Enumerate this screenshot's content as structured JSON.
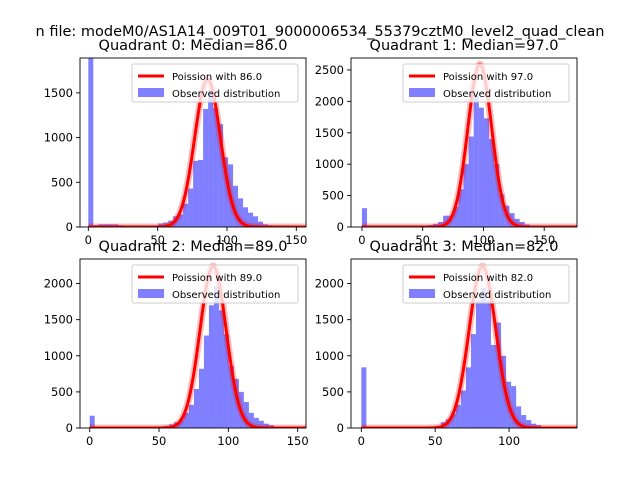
{
  "suptitle": "n file: modeM0/AS1A14_009T01_9000006534_55379cztM0_level2_quad_clean",
  "colors": {
    "observed": "#0000ff",
    "observed_alpha": 0.5,
    "poisson": "#ff0000"
  },
  "chart_data": [
    {
      "type": "bar+line",
      "title": "Quadrant 0: Median=86.0",
      "median": 86,
      "x_ticks": [
        0,
        50,
        100,
        150
      ],
      "y_ticks": [
        0,
        500,
        1000,
        1500
      ],
      "xlim": [
        -6,
        157
      ],
      "ylim": [
        0,
        1890
      ],
      "legend": [
        "Poission with 86.0",
        "Observed distribution"
      ],
      "legend_loc": "upper right",
      "poisson_peak": 1650,
      "hist_bin_width": 3.6,
      "hist": [
        [
          0,
          1890
        ],
        [
          3.6,
          20
        ],
        [
          7.2,
          30
        ],
        [
          10.8,
          30
        ],
        [
          14.4,
          30
        ],
        [
          18,
          30
        ],
        [
          21.6,
          20
        ],
        [
          25.2,
          15
        ],
        [
          28.8,
          10
        ],
        [
          32.4,
          10
        ],
        [
          36,
          10
        ],
        [
          39.6,
          10
        ],
        [
          43.2,
          10
        ],
        [
          46.8,
          15
        ],
        [
          50.4,
          40
        ],
        [
          54,
          50
        ],
        [
          57.6,
          70
        ],
        [
          61.2,
          120
        ],
        [
          64.8,
          140
        ],
        [
          68.4,
          260
        ],
        [
          72,
          430
        ],
        [
          75.6,
          740
        ],
        [
          79.2,
          750
        ],
        [
          82.8,
          1320
        ],
        [
          86.4,
          1530
        ],
        [
          90,
          1330
        ],
        [
          93.6,
          1150
        ],
        [
          97.2,
          780
        ],
        [
          100.8,
          700
        ],
        [
          104.4,
          460
        ],
        [
          108,
          320
        ],
        [
          111.6,
          220
        ],
        [
          115.2,
          160
        ],
        [
          118.8,
          120
        ],
        [
          122.4,
          60
        ],
        [
          126,
          30
        ],
        [
          129.6,
          20
        ],
        [
          133.2,
          10
        ]
      ]
    },
    {
      "type": "bar+line",
      "title": "Quadrant 1: Median=97.0",
      "median": 97,
      "x_ticks": [
        0,
        50,
        100,
        150
      ],
      "y_ticks": [
        0,
        500,
        1000,
        1500,
        2000,
        2500
      ],
      "xlim": [
        -9,
        177
      ],
      "ylim": [
        0,
        2690
      ],
      "legend": [
        "Poission with 97.0",
        "Observed distribution"
      ],
      "legend_loc": "upper right",
      "poisson_peak": 2590,
      "hist_bin_width": 4.2,
      "hist": [
        [
          0,
          300
        ],
        [
          4.2,
          0
        ],
        [
          50,
          20
        ],
        [
          54.2,
          30
        ],
        [
          58.4,
          50
        ],
        [
          62.6,
          80
        ],
        [
          66.8,
          180
        ],
        [
          71,
          180
        ],
        [
          75.2,
          320
        ],
        [
          79.4,
          600
        ],
        [
          83.6,
          1000
        ],
        [
          87.8,
          1440
        ],
        [
          92,
          2100
        ],
        [
          96.2,
          1900
        ],
        [
          100.4,
          1730
        ],
        [
          104.6,
          1400
        ],
        [
          108.8,
          1000
        ],
        [
          113,
          520
        ],
        [
          117.2,
          340
        ],
        [
          121.4,
          220
        ],
        [
          125.6,
          130
        ],
        [
          129.8,
          80
        ],
        [
          134,
          40
        ],
        [
          138.2,
          20
        ],
        [
          142.4,
          10
        ],
        [
          146.6,
          10
        ],
        [
          150.8,
          5
        ],
        [
          155,
          5
        ],
        [
          159.2,
          5
        ],
        [
          163.4,
          5
        ]
      ]
    },
    {
      "type": "bar+line",
      "title": "Quadrant 2: Median=89.0",
      "median": 89,
      "x_ticks": [
        0,
        50,
        100,
        150
      ],
      "y_ticks": [
        0,
        500,
        1000,
        1500,
        2000
      ],
      "xlim": [
        -7,
        156
      ],
      "ylim": [
        0,
        2340
      ],
      "legend": [
        "Poission with 89.0",
        "Observed distribution"
      ],
      "legend_loc": "upper right",
      "poisson_peak": 2240,
      "hist_bin_width": 3.6,
      "hist": [
        [
          0,
          170
        ],
        [
          3.6,
          0
        ],
        [
          50,
          20
        ],
        [
          53.6,
          30
        ],
        [
          57.2,
          50
        ],
        [
          60.8,
          80
        ],
        [
          64.4,
          120
        ],
        [
          68,
          210
        ],
        [
          71.6,
          320
        ],
        [
          75.2,
          540
        ],
        [
          78.8,
          820
        ],
        [
          82.4,
          1280
        ],
        [
          86,
          1700
        ],
        [
          89.6,
          1960
        ],
        [
          93.2,
          1630
        ],
        [
          96.8,
          1300
        ],
        [
          100.4,
          860
        ],
        [
          104,
          680
        ],
        [
          107.6,
          500
        ],
        [
          111.2,
          360
        ],
        [
          114.8,
          210
        ],
        [
          118.4,
          140
        ],
        [
          122,
          100
        ],
        [
          125.6,
          60
        ],
        [
          129.2,
          40
        ],
        [
          132.8,
          20
        ],
        [
          136.4,
          10
        ],
        [
          140,
          5
        ]
      ]
    },
    {
      "type": "bar+line",
      "title": "Quadrant 3: Median=82.0",
      "median": 82,
      "x_ticks": [
        0,
        50,
        100
      ],
      "y_ticks": [
        0,
        500,
        1000,
        1500,
        2000
      ],
      "xlim": [
        -7,
        146
      ],
      "ylim": [
        0,
        2340
      ],
      "legend": [
        "Poission with 82.0",
        "Observed distribution"
      ],
      "legend_loc": "upper right",
      "poisson_peak": 2240,
      "hist_bin_width": 3.4,
      "hist": [
        [
          0,
          840
        ],
        [
          3.4,
          0
        ],
        [
          47,
          20
        ],
        [
          50.4,
          30
        ],
        [
          53.8,
          80
        ],
        [
          57.2,
          120
        ],
        [
          60.6,
          200
        ],
        [
          64,
          320
        ],
        [
          67.4,
          520
        ],
        [
          70.8,
          840
        ],
        [
          74.2,
          1300
        ],
        [
          77.6,
          1760
        ],
        [
          81,
          1940
        ],
        [
          84.4,
          1760
        ],
        [
          87.8,
          1150
        ],
        [
          91.2,
          1460
        ],
        [
          94.6,
          1000
        ],
        [
          98,
          640
        ],
        [
          101.4,
          580
        ],
        [
          104.8,
          300
        ],
        [
          108.2,
          180
        ],
        [
          111.6,
          110
        ],
        [
          115,
          60
        ],
        [
          118.4,
          40
        ],
        [
          121.8,
          20
        ],
        [
          125.2,
          10
        ],
        [
          128.6,
          5
        ]
      ]
    }
  ]
}
